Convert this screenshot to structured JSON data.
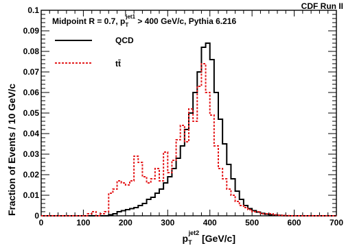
{
  "chart_data": {
    "type": "histogram",
    "corner_label": "CDF Run II",
    "title": {
      "prefix": "Midpoint R = 0.7, p",
      "sub": "T",
      "sup": "jet1",
      "suffix": " > 400 GeV/c, Pythia 6.216"
    },
    "xlabel": {
      "main": "p",
      "sub": "T",
      "sup": "jet2",
      "suffix": " [GeV/c]"
    },
    "ylabel": "Fraction of Events / 10 GeV/c",
    "xlim": [
      0,
      700
    ],
    "ylim": [
      0,
      0.1
    ],
    "x_ticks": [
      "0",
      "100",
      "200",
      "300",
      "400",
      "500",
      "600",
      "700"
    ],
    "y_ticks": [
      "0",
      "0.01",
      "0.02",
      "0.03",
      "0.04",
      "0.05",
      "0.06",
      "0.07",
      "0.08",
      "0.09",
      "0.1"
    ],
    "bin_width": 10,
    "bin_start": 0,
    "grid": false,
    "legend_position": "top-left",
    "series": [
      {
        "name": "QCD",
        "color": "#000000",
        "style": "solid",
        "values": [
          0,
          0,
          0,
          0,
          0,
          0,
          0,
          0,
          0,
          0,
          0,
          0,
          0,
          0,
          0,
          0,
          0.0005,
          0.001,
          0.002,
          0.0025,
          0.003,
          0.0035,
          0.004,
          0.005,
          0.006,
          0.008,
          0.009,
          0.011,
          0.013,
          0.016,
          0.019,
          0.023,
          0.028,
          0.034,
          0.042,
          0.05,
          0.06,
          0.07,
          0.082,
          0.084,
          0.076,
          0.06,
          0.047,
          0.035,
          0.025,
          0.018,
          0.012,
          0.008,
          0.005,
          0.0035,
          0.0025,
          0.0018,
          0.0012,
          0.0008,
          0.0005,
          0.0003,
          0.0002,
          0.0001,
          0,
          0,
          0,
          0,
          0,
          0,
          0,
          0,
          0,
          0,
          0,
          0
        ]
      },
      {
        "name": "t̅",
        "display_name": "tt̄",
        "color": "#e41a1c",
        "style": "dashed",
        "values": [
          0,
          0,
          0,
          0,
          0,
          0,
          0,
          0,
          0,
          0,
          0,
          0.001,
          0.002,
          0,
          0.001,
          0.002,
          0.011,
          0.013,
          0.017,
          0.016,
          0.015,
          0.017,
          0.029,
          0.026,
          0.019,
          0.016,
          0.018,
          0.023,
          0.017,
          0.031,
          0.021,
          0.027,
          0.037,
          0.044,
          0.036,
          0.052,
          0.046,
          0.063,
          0.074,
          0.06,
          0.049,
          0.034,
          0.023,
          0.018,
          0.013,
          0.01,
          0.007,
          0.005,
          0.004,
          0.003,
          0.002,
          0.002,
          0.001,
          0.001,
          0.001,
          0.0005,
          0.0003,
          0.0002,
          0.0001,
          0,
          0,
          0,
          0,
          0,
          0,
          0,
          0,
          0,
          0,
          0
        ]
      }
    ]
  }
}
